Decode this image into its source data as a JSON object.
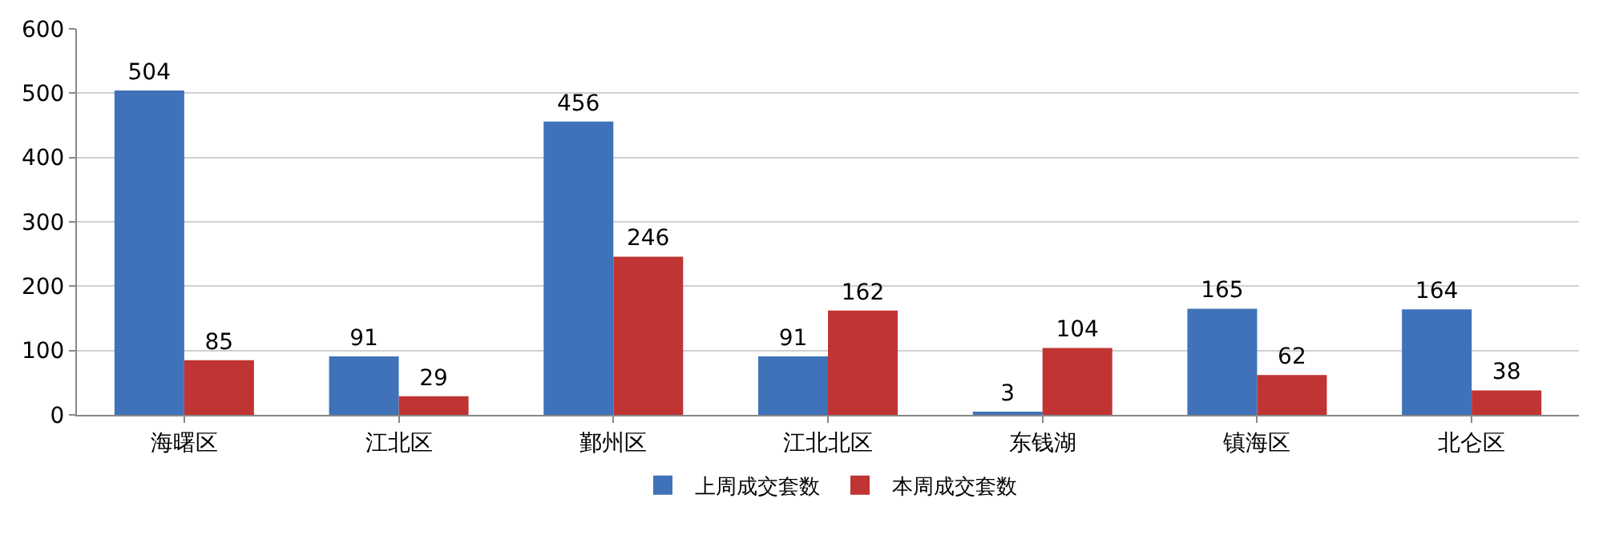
{
  "chart_data": {
    "type": "bar",
    "categories": [
      "海曙区",
      "江北区",
      "鄞州区",
      "江北北区",
      "东钱湖",
      "镇海区",
      "北仑区"
    ],
    "series": [
      {
        "name": "上周成交套数",
        "color": "#3f72b8",
        "values": [
          504,
          91,
          456,
          91,
          3,
          165,
          164
        ]
      },
      {
        "name": "本周成交套数",
        "color": "#c03434",
        "values": [
          85,
          29,
          246,
          162,
          104,
          62,
          38
        ]
      }
    ],
    "ylim": [
      0,
      600
    ],
    "yticks": [
      0,
      100,
      200,
      300,
      400,
      500,
      600
    ],
    "grid": "y",
    "legend": "bottom",
    "data_labels": true
  }
}
